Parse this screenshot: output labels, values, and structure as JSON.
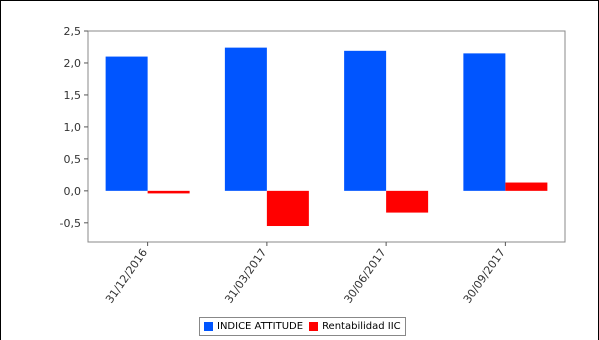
{
  "chart_data": {
    "type": "bar",
    "categories": [
      "31/12/2016",
      "31/03/2017",
      "30/06/2017",
      "30/09/2017"
    ],
    "series": [
      {
        "name": "INDICE ATTITUDE",
        "values": [
          2.1,
          2.24,
          2.19,
          2.15
        ],
        "color": "#0055ff"
      },
      {
        "name": "Rentabilidad IIC",
        "values": [
          -0.04,
          -0.55,
          -0.34,
          0.13
        ],
        "color": "#ff0000"
      }
    ],
    "yticks": [
      "-0,5",
      "0,0",
      "0,5",
      "1,0",
      "1,5",
      "2,0",
      "2,5"
    ],
    "ylim": [
      -0.8,
      2.5
    ],
    "grid": false,
    "legend": "bottom",
    "title": "",
    "xlabel": "",
    "ylabel": ""
  }
}
